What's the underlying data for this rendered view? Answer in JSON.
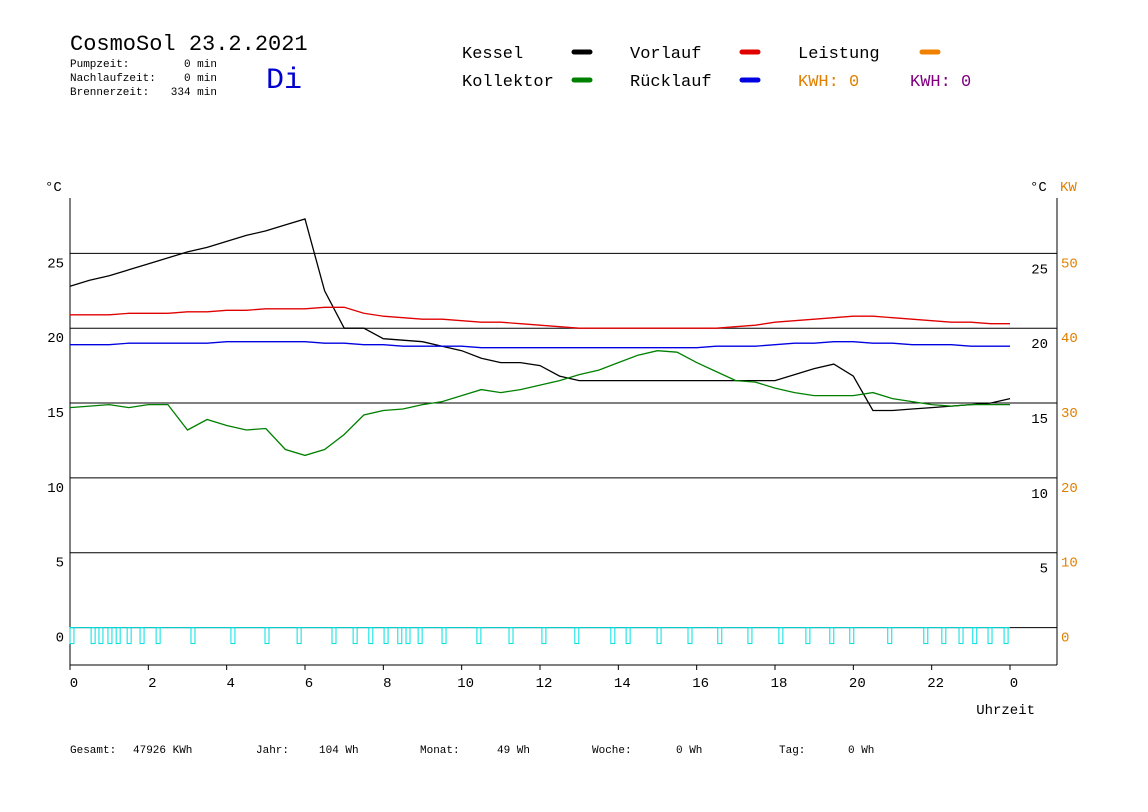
{
  "header": {
    "title": "CosmoSol 23.2.2021",
    "day": "Di",
    "stats": [
      [
        "Pumpzeit:",
        "0 min"
      ],
      [
        "Nachlaufzeit:",
        "0 min"
      ],
      [
        "Brennerzeit:",
        "334 min"
      ]
    ]
  },
  "footer": [
    [
      "Gesamt:",
      "47926 KWh"
    ],
    [
      "Jahr:",
      "104 Wh"
    ],
    [
      "Monat:",
      "49 Wh"
    ],
    [
      "Woche:",
      "0 Wh"
    ],
    [
      "Tag:",
      "0 Wh"
    ]
  ],
  "chart_data": {
    "type": "line",
    "ylabel": "°C",
    "y2label_temp": "°C",
    "y2label": "KW",
    "xlabel": "Uhrzeit",
    "xlim": [
      0,
      25.2
    ],
    "xticks": [
      0,
      2,
      4,
      6,
      8,
      10,
      12,
      14,
      16,
      18,
      20,
      22,
      {
        "value": 24,
        "label": "0"
      }
    ],
    "ylim": [
      -2.5,
      28.7
    ],
    "yticks": [
      0,
      5,
      10,
      15,
      20,
      25
    ],
    "yticks_right": [
      5,
      10,
      15,
      20,
      25
    ],
    "y2lim": [
      -5,
      57.4
    ],
    "y2ticks": [
      0,
      10,
      20,
      30,
      40,
      50
    ],
    "y2color": "#e08000",
    "grid": true,
    "x": [
      0,
      0.5,
      1,
      1.5,
      2,
      2.5,
      3,
      3.5,
      4,
      4.5,
      5,
      5.5,
      6,
      6.5,
      7,
      7.5,
      8,
      8.5,
      9,
      9.5,
      10,
      10.5,
      11,
      11.5,
      12,
      12.5,
      13,
      13.5,
      14,
      14.5,
      15,
      15.5,
      16,
      16.5,
      17,
      17.5,
      18,
      18.5,
      19,
      19.5,
      20,
      20.5,
      21,
      21.5,
      22,
      22.5,
      23,
      23.5,
      24
    ],
    "series": [
      {
        "name": "Kessel",
        "color": "#000000",
        "values": [
          22.8,
          23.2,
          23.5,
          23.9,
          24.3,
          24.7,
          25.1,
          25.4,
          25.8,
          26.2,
          26.5,
          26.9,
          27.3,
          22.5,
          20.0,
          20.0,
          19.3,
          19.2,
          19.1,
          18.8,
          18.5,
          18.0,
          17.7,
          17.7,
          17.5,
          16.8,
          16.5,
          16.5,
          16.5,
          16.5,
          16.5,
          16.5,
          16.5,
          16.5,
          16.5,
          16.5,
          16.5,
          16.9,
          17.3,
          17.6,
          16.8,
          14.5,
          14.5,
          14.6,
          14.7,
          14.8,
          14.9,
          15.0,
          15.3
        ]
      },
      {
        "name": "Kollektor",
        "color": "#008000",
        "values": [
          14.7,
          14.8,
          14.9,
          14.7,
          14.9,
          14.9,
          13.2,
          13.9,
          13.5,
          13.2,
          13.3,
          11.9,
          11.5,
          11.9,
          12.9,
          14.2,
          14.5,
          14.6,
          14.9,
          15.1,
          15.5,
          15.9,
          15.7,
          15.9,
          16.2,
          16.5,
          16.9,
          17.2,
          17.7,
          18.2,
          18.5,
          18.4,
          17.7,
          17.1,
          16.5,
          16.4,
          16.0,
          15.7,
          15.5,
          15.5,
          15.5,
          15.7,
          15.3,
          15.1,
          14.9,
          14.8,
          14.9,
          14.9,
          14.9
        ]
      },
      {
        "name": "Vorlauf",
        "color": "#e00000",
        "values": [
          20.9,
          20.9,
          20.9,
          21.0,
          21.0,
          21.0,
          21.1,
          21.1,
          21.2,
          21.2,
          21.3,
          21.3,
          21.3,
          21.4,
          21.4,
          21.0,
          20.8,
          20.7,
          20.6,
          20.6,
          20.5,
          20.4,
          20.4,
          20.3,
          20.2,
          20.1,
          20.0,
          20.0,
          20.0,
          20.0,
          20.0,
          20.0,
          20.0,
          20.0,
          20.1,
          20.2,
          20.4,
          20.5,
          20.6,
          20.7,
          20.8,
          20.8,
          20.7,
          20.6,
          20.5,
          20.4,
          20.4,
          20.3,
          20.3
        ]
      },
      {
        "name": "Rücklauf",
        "color": "#0000e0",
        "values": [
          18.9,
          18.9,
          18.9,
          19.0,
          19.0,
          19.0,
          19.0,
          19.0,
          19.1,
          19.1,
          19.1,
          19.1,
          19.1,
          19.0,
          19.0,
          18.9,
          18.9,
          18.8,
          18.8,
          18.8,
          18.8,
          18.7,
          18.7,
          18.7,
          18.7,
          18.7,
          18.7,
          18.7,
          18.7,
          18.7,
          18.7,
          18.7,
          18.7,
          18.8,
          18.8,
          18.8,
          18.9,
          19.0,
          19.0,
          19.1,
          19.1,
          19.0,
          19.0,
          18.9,
          18.9,
          18.9,
          18.8,
          18.8,
          18.8
        ]
      },
      {
        "name": "Leistung",
        "color": "#f08000"
      }
    ],
    "kwh": [
      {
        "label": "KWH: 0",
        "color": "#e08000"
      },
      {
        "label": "KWH: 0",
        "color": "#800080"
      }
    ],
    "pump_pulses": {
      "color": "#00e0e0",
      "x": [
        0.05,
        0.59,
        0.79,
        1.02,
        1.23,
        1.51,
        1.84,
        2.25,
        3.14,
        4.16,
        5.03,
        5.85,
        6.74,
        7.28,
        7.68,
        8.07,
        8.42,
        8.63,
        8.94,
        9.55,
        10.44,
        11.26,
        12.1,
        12.94,
        13.86,
        14.25,
        15.04,
        15.83,
        16.59,
        17.36,
        18.15,
        18.84,
        19.45,
        19.96,
        20.93,
        21.85,
        22.31,
        22.75,
        23.1,
        23.49,
        23.9
      ]
    }
  }
}
